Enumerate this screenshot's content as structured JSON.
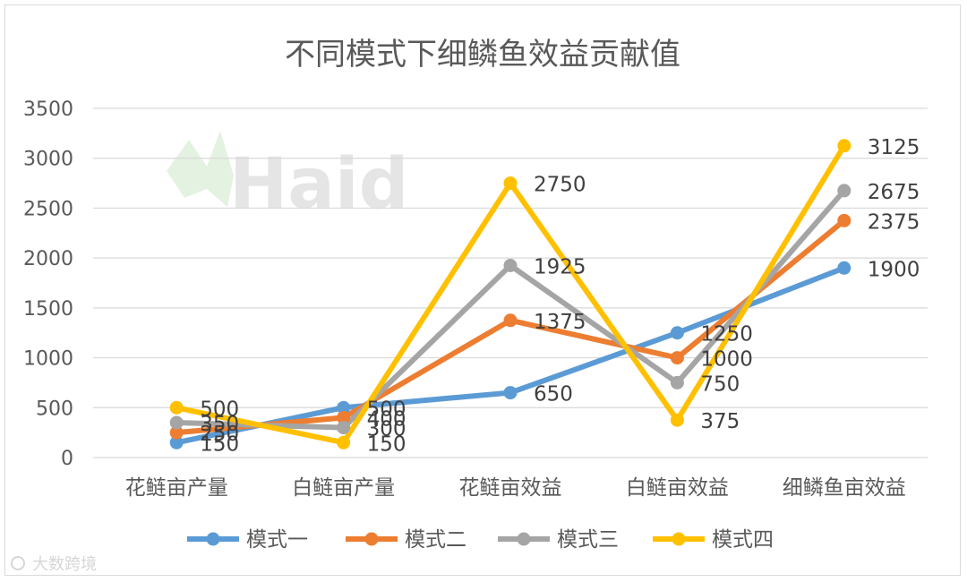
{
  "chart_data": {
    "type": "line",
    "title": "不同模式下细鳞鱼效益贡献值",
    "xlabel": "",
    "ylabel": "",
    "categories": [
      "花鲢亩产量",
      "白鲢亩产量",
      "花鲢亩效益",
      "白鲢亩效益",
      "细鳞鱼亩效益"
    ],
    "ylim": [
      0,
      3500
    ],
    "yticks": [
      0,
      500,
      1000,
      1500,
      2000,
      2500,
      3000,
      3500
    ],
    "grid": true,
    "legend": "bottom",
    "series": [
      {
        "name": "模式一",
        "color": "#5b9bd5",
        "values": [
          150,
          500,
          650,
          1250,
          1900
        ]
      },
      {
        "name": "模式二",
        "color": "#ed7d31",
        "values": [
          250,
          400,
          1375,
          1000,
          2375
        ]
      },
      {
        "name": "模式三",
        "color": "#a5a5a5",
        "values": [
          350,
          300,
          1925,
          750,
          2675
        ]
      },
      {
        "name": "模式四",
        "color": "#ffc000",
        "values": [
          500,
          150,
          2750,
          375,
          3125
        ]
      }
    ]
  },
  "watermark": {
    "logo_text": "Haid",
    "footer_text": "大数跨境"
  }
}
